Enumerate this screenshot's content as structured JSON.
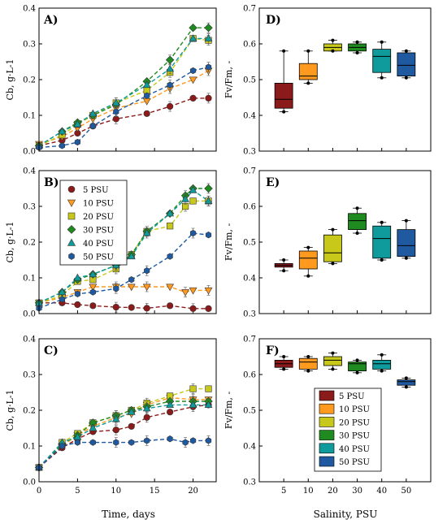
{
  "figure": {
    "x_axis_label_left": "Time, days",
    "x_axis_label_right": "Salinity, PSU"
  },
  "legend_series": [
    {
      "label": "5 PSU",
      "color": "#8b1a1a",
      "marker": "circle"
    },
    {
      "label": "10 PSU",
      "color": "#ff9a1f",
      "marker": "triangle-down"
    },
    {
      "label": "20 PSU",
      "color": "#c8c81a",
      "marker": "square"
    },
    {
      "label": "30 PSU",
      "color": "#1f8a1f",
      "marker": "diamond"
    },
    {
      "label": "40 PSU",
      "color": "#0f9b9b",
      "marker": "triangle-up"
    },
    {
      "label": "50 PSU",
      "color": "#1f5aa0",
      "marker": "hexagon"
    }
  ],
  "chart_data": [
    {
      "panel": "A)",
      "type": "line",
      "ylabel": "Cb, g·L-1",
      "xlim": [
        0,
        23
      ],
      "ylim": [
        0,
        0.4
      ],
      "xticks": [
        0,
        5,
        10,
        15,
        20
      ],
      "yticks": [
        0.0,
        0.1,
        0.2,
        0.3,
        0.4
      ],
      "series": [
        {
          "name": "5 PSU",
          "x": [
            0,
            3,
            5,
            7,
            10,
            14,
            17,
            20,
            22
          ],
          "y": [
            0.015,
            0.03,
            0.05,
            0.07,
            0.09,
            0.105,
            0.125,
            0.148,
            0.148
          ]
        },
        {
          "name": "10 PSU",
          "x": [
            0,
            3,
            5,
            7,
            10,
            14,
            17,
            20,
            22
          ],
          "y": [
            0.02,
            0.04,
            0.065,
            0.09,
            0.12,
            0.14,
            0.175,
            0.2,
            0.225
          ]
        },
        {
          "name": "20 PSU",
          "x": [
            0,
            3,
            5,
            7,
            10,
            14,
            17,
            20,
            22
          ],
          "y": [
            0.015,
            0.045,
            0.075,
            0.1,
            0.135,
            0.17,
            0.22,
            0.315,
            0.31
          ]
        },
        {
          "name": "30 PSU",
          "x": [
            0,
            3,
            5,
            7,
            10,
            14,
            17,
            20,
            22
          ],
          "y": [
            0.015,
            0.055,
            0.08,
            0.1,
            0.13,
            0.195,
            0.255,
            0.345,
            0.345
          ]
        },
        {
          "name": "40 PSU",
          "x": [
            0,
            3,
            5,
            7,
            10,
            14,
            17,
            20,
            22
          ],
          "y": [
            0.015,
            0.055,
            0.075,
            0.105,
            0.135,
            0.185,
            0.23,
            0.315,
            0.315
          ]
        },
        {
          "name": "50 PSU",
          "x": [
            0,
            3,
            5,
            7,
            10,
            14,
            17,
            20,
            22
          ],
          "y": [
            0.01,
            0.015,
            0.025,
            0.07,
            0.11,
            0.155,
            0.185,
            0.225,
            0.235
          ]
        }
      ]
    },
    {
      "panel": "B)",
      "type": "line",
      "ylabel": "Cb, g·L-1",
      "xlim": [
        0,
        23
      ],
      "ylim": [
        0,
        0.4
      ],
      "xticks": [
        0,
        5,
        10,
        15,
        20
      ],
      "yticks": [
        0.0,
        0.1,
        0.2,
        0.3,
        0.4
      ],
      "series": [
        {
          "name": "5 PSU",
          "x": [
            0,
            3,
            5,
            7,
            10,
            12,
            14,
            17,
            20,
            22
          ],
          "y": [
            0.03,
            0.03,
            0.025,
            0.022,
            0.018,
            0.017,
            0.015,
            0.022,
            0.014,
            0.014
          ]
        },
        {
          "name": "10 PSU",
          "x": [
            0,
            3,
            5,
            7,
            10,
            12,
            14,
            17,
            19,
            20,
            22
          ],
          "y": [
            0.03,
            0.045,
            0.06,
            0.075,
            0.075,
            0.075,
            0.075,
            0.075,
            0.06,
            0.065,
            0.065
          ]
        },
        {
          "name": "20 PSU",
          "x": [
            0,
            3,
            5,
            7,
            10,
            12,
            14,
            17,
            19,
            20,
            22
          ],
          "y": [
            0.03,
            0.05,
            0.09,
            0.095,
            0.125,
            0.165,
            0.23,
            0.245,
            0.3,
            0.315,
            0.315
          ]
        },
        {
          "name": "30 PSU",
          "x": [
            0,
            3,
            5,
            7,
            10,
            12,
            14,
            17,
            19,
            20,
            22
          ],
          "y": [
            0.03,
            0.06,
            0.095,
            0.11,
            0.135,
            0.165,
            0.23,
            0.28,
            0.33,
            0.35,
            0.35
          ]
        },
        {
          "name": "40 PSU",
          "x": [
            0,
            3,
            5,
            7,
            10,
            12,
            14,
            17,
            19,
            20,
            22
          ],
          "y": [
            0.03,
            0.06,
            0.1,
            0.11,
            0.135,
            0.16,
            0.225,
            0.28,
            0.32,
            0.345,
            0.315
          ]
        },
        {
          "name": "50 PSU",
          "x": [
            0,
            3,
            5,
            7,
            10,
            12,
            14,
            17,
            20,
            22
          ],
          "y": [
            0.015,
            0.04,
            0.055,
            0.06,
            0.07,
            0.095,
            0.12,
            0.16,
            0.225,
            0.22
          ]
        }
      ]
    },
    {
      "panel": "C)",
      "type": "line",
      "ylabel": "Cb, g·L-1",
      "xlim": [
        0,
        23
      ],
      "ylim": [
        0,
        0.4
      ],
      "xticks": [
        0,
        5,
        10,
        15,
        20
      ],
      "yticks": [
        0.0,
        0.1,
        0.2,
        0.3,
        0.4
      ],
      "series": [
        {
          "name": "5 PSU",
          "x": [
            0,
            3,
            5,
            7,
            10,
            12,
            14,
            17,
            20,
            22
          ],
          "y": [
            0.04,
            0.095,
            0.12,
            0.14,
            0.145,
            0.155,
            0.18,
            0.195,
            0.21,
            0.215
          ]
        },
        {
          "name": "10 PSU",
          "x": [
            0,
            3,
            5,
            7,
            10,
            12,
            14,
            17,
            20,
            22
          ],
          "y": [
            0.04,
            0.1,
            0.13,
            0.155,
            0.18,
            0.19,
            0.215,
            0.235,
            0.23,
            0.23
          ]
        },
        {
          "name": "20 PSU",
          "x": [
            0,
            3,
            5,
            7,
            10,
            12,
            14,
            17,
            20,
            22
          ],
          "y": [
            0.04,
            0.11,
            0.135,
            0.165,
            0.185,
            0.2,
            0.22,
            0.24,
            0.26,
            0.26
          ]
        },
        {
          "name": "30 PSU",
          "x": [
            0,
            3,
            5,
            7,
            10,
            12,
            14,
            17,
            20,
            22
          ],
          "y": [
            0.04,
            0.105,
            0.13,
            0.165,
            0.185,
            0.2,
            0.21,
            0.225,
            0.225,
            0.225
          ]
        },
        {
          "name": "40 PSU",
          "x": [
            0,
            3,
            5,
            7,
            10,
            12,
            14,
            17,
            20,
            22
          ],
          "y": [
            0.04,
            0.11,
            0.125,
            0.15,
            0.175,
            0.195,
            0.205,
            0.215,
            0.215,
            0.215
          ]
        },
        {
          "name": "50 PSU",
          "x": [
            0,
            3,
            5,
            7,
            10,
            12,
            14,
            17,
            19,
            20,
            22
          ],
          "y": [
            0.04,
            0.1,
            0.11,
            0.11,
            0.11,
            0.11,
            0.115,
            0.12,
            0.11,
            0.115,
            0.115
          ]
        }
      ]
    },
    {
      "panel": "D)",
      "type": "box",
      "ylabel": "Fv/Fm, -",
      "ylim": [
        0.3,
        0.7
      ],
      "yticks": [
        0.3,
        0.4,
        0.5,
        0.6,
        0.7
      ],
      "categories": [
        "5",
        "10",
        "20",
        "30",
        "40",
        "50"
      ],
      "boxes": [
        {
          "min": 0.41,
          "q1": 0.42,
          "median": 0.445,
          "q3": 0.49,
          "max": 0.58
        },
        {
          "min": 0.49,
          "q1": 0.5,
          "median": 0.51,
          "q3": 0.545,
          "max": 0.58
        },
        {
          "min": 0.58,
          "q1": 0.58,
          "median": 0.59,
          "q3": 0.6,
          "max": 0.61
        },
        {
          "min": 0.575,
          "q1": 0.58,
          "median": 0.59,
          "q3": 0.6,
          "max": 0.605
        },
        {
          "min": 0.505,
          "q1": 0.52,
          "median": 0.565,
          "q3": 0.585,
          "max": 0.605
        },
        {
          "min": 0.505,
          "q1": 0.51,
          "median": 0.54,
          "q3": 0.575,
          "max": 0.58
        }
      ]
    },
    {
      "panel": "E)",
      "type": "box",
      "ylabel": "Fv/Fm, -",
      "ylim": [
        0.3,
        0.7
      ],
      "yticks": [
        0.3,
        0.4,
        0.5,
        0.6,
        0.7
      ],
      "categories": [
        "5",
        "10",
        "20",
        "30",
        "40",
        "50"
      ],
      "boxes": [
        {
          "min": 0.42,
          "q1": 0.43,
          "median": 0.435,
          "q3": 0.44,
          "max": 0.45
        },
        {
          "min": 0.405,
          "q1": 0.425,
          "median": 0.455,
          "q3": 0.475,
          "max": 0.485
        },
        {
          "min": 0.44,
          "q1": 0.445,
          "median": 0.47,
          "q3": 0.52,
          "max": 0.535
        },
        {
          "min": 0.525,
          "q1": 0.535,
          "median": 0.56,
          "q3": 0.58,
          "max": 0.595
        },
        {
          "min": 0.45,
          "q1": 0.455,
          "median": 0.51,
          "q3": 0.545,
          "max": 0.555
        },
        {
          "min": 0.455,
          "q1": 0.46,
          "median": 0.49,
          "q3": 0.535,
          "max": 0.56
        }
      ]
    },
    {
      "panel": "F)",
      "type": "box",
      "ylabel": "Fv/Fm, -",
      "ylim": [
        0.3,
        0.7
      ],
      "yticks": [
        0.3,
        0.4,
        0.5,
        0.6,
        0.7
      ],
      "categories": [
        "5",
        "10",
        "20",
        "30",
        "40",
        "50"
      ],
      "boxes": [
        {
          "min": 0.615,
          "q1": 0.62,
          "median": 0.63,
          "q3": 0.64,
          "max": 0.65
        },
        {
          "min": 0.61,
          "q1": 0.615,
          "median": 0.635,
          "q3": 0.645,
          "max": 0.65
        },
        {
          "min": 0.615,
          "q1": 0.625,
          "median": 0.64,
          "q3": 0.65,
          "max": 0.66
        },
        {
          "min": 0.605,
          "q1": 0.61,
          "median": 0.63,
          "q3": 0.635,
          "max": 0.64
        },
        {
          "min": 0.61,
          "q1": 0.615,
          "median": 0.63,
          "q3": 0.64,
          "max": 0.655
        },
        {
          "min": 0.565,
          "q1": 0.57,
          "median": 0.58,
          "q3": 0.585,
          "max": 0.59
        }
      ]
    }
  ]
}
